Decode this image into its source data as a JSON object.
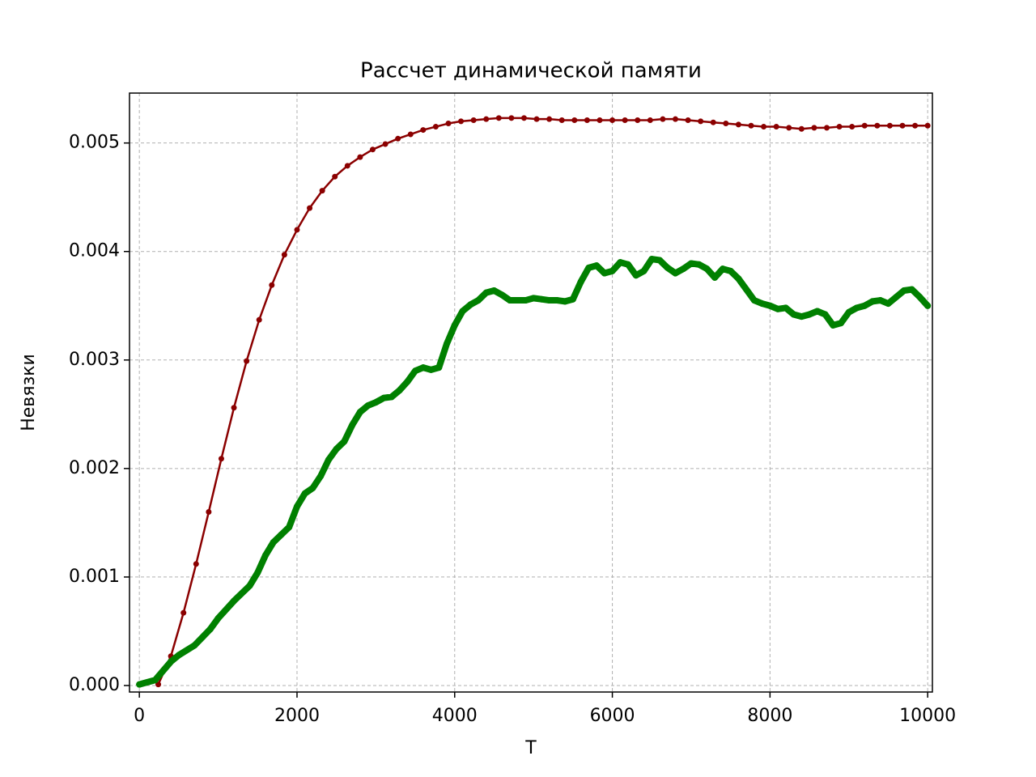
{
  "chart_data": {
    "type": "line",
    "title": "Рассчет динамической памяти",
    "x_label": "T",
    "y_label": "Невязки",
    "xlim": [
      -125,
      10060
    ],
    "ylim": [
      -6e-05,
      0.00546
    ],
    "xticks": [
      0,
      2000,
      4000,
      6000,
      8000,
      10000
    ],
    "yticks": [
      {
        "value": 0,
        "label": "0.000"
      },
      {
        "value": 0.001,
        "label": "0.001"
      },
      {
        "value": 0.002,
        "label": "0.002"
      },
      {
        "value": 0.003,
        "label": "0.003"
      },
      {
        "value": 0.004,
        "label": "0.004"
      },
      {
        "value": 0.005,
        "label": "0.005"
      }
    ],
    "grid": true,
    "series": [
      {
        "color": "#8b0000",
        "line_width": 2.5,
        "marker_radius": 3.5,
        "x": [
          240,
          400,
          560,
          720,
          880,
          1040,
          1200,
          1360,
          1520,
          1680,
          1840,
          2000,
          2160,
          2320,
          2480,
          2640,
          2800,
          2960,
          3120,
          3280,
          3440,
          3600,
          3760,
          3920,
          4080,
          4240,
          4400,
          4560,
          4720,
          4880,
          5040,
          5200,
          5360,
          5520,
          5680,
          5840,
          6000,
          6160,
          6320,
          6480,
          6640,
          6800,
          6960,
          7120,
          7280,
          7440,
          7600,
          7760,
          7920,
          8080,
          8240,
          8400,
          8560,
          8720,
          8880,
          9040,
          9200,
          9360,
          9520,
          9680,
          9840,
          10000
        ],
        "values": [
          1e-05,
          0.00027,
          0.00067,
          0.00112,
          0.0016,
          0.00209,
          0.00256,
          0.00299,
          0.00337,
          0.00369,
          0.00397,
          0.0042,
          0.0044,
          0.00456,
          0.00469,
          0.00479,
          0.00487,
          0.00494,
          0.00499,
          0.00504,
          0.00508,
          0.00512,
          0.00515,
          0.00518,
          0.0052,
          0.00521,
          0.00522,
          0.00523,
          0.00523,
          0.00523,
          0.00522,
          0.00522,
          0.00521,
          0.00521,
          0.00521,
          0.00521,
          0.00521,
          0.00521,
          0.00521,
          0.00521,
          0.00522,
          0.00522,
          0.00521,
          0.0052,
          0.00519,
          0.00518,
          0.00517,
          0.00516,
          0.00515,
          0.00515,
          0.00514,
          0.00513,
          0.00514,
          0.00514,
          0.00515,
          0.00515,
          0.00516,
          0.00516,
          0.00516,
          0.00516,
          0.00516,
          0.00516
        ]
      },
      {
        "color": "#008000",
        "line_width": 8,
        "marker_radius": 4,
        "x": [
          0,
          200,
          400,
          500,
          700,
          900,
          1000,
          1200,
          1400,
          1500,
          1600,
          1700,
          1800,
          1900,
          2000,
          2100,
          2200,
          2300,
          2400,
          2500,
          2600,
          2700,
          2800,
          2900,
          3000,
          3100,
          3200,
          3300,
          3400,
          3500,
          3600,
          3700,
          3800,
          3900,
          4000,
          4100,
          4200,
          4300,
          4400,
          4500,
          4600,
          4700,
          4800,
          4900,
          5000,
          5100,
          5200,
          5300,
          5400,
          5500,
          5600,
          5700,
          5800,
          5900,
          6000,
          6100,
          6200,
          6300,
          6400,
          6500,
          6600,
          6700,
          6800,
          6900,
          7000,
          7100,
          7200,
          7300,
          7400,
          7500,
          7600,
          7700,
          7800,
          7900,
          8000,
          8100,
          8200,
          8300,
          8400,
          8500,
          8600,
          8700,
          8800,
          8900,
          9000,
          9100,
          9200,
          9300,
          9400,
          9500,
          9600,
          9700,
          9800,
          9900,
          10000
        ],
        "values": [
          1e-05,
          5e-05,
          0.00022,
          0.00028,
          0.00037,
          0.00052,
          0.00062,
          0.00078,
          0.00092,
          0.00104,
          0.0012,
          0.00132,
          0.00139,
          0.00146,
          0.00165,
          0.00177,
          0.00182,
          0.00193,
          0.00208,
          0.00218,
          0.00225,
          0.0024,
          0.00252,
          0.00258,
          0.00261,
          0.00265,
          0.00266,
          0.00272,
          0.0028,
          0.0029,
          0.00293,
          0.00291,
          0.00293,
          0.00315,
          0.00332,
          0.00345,
          0.00351,
          0.00355,
          0.00362,
          0.00364,
          0.0036,
          0.00355,
          0.00355,
          0.00355,
          0.00357,
          0.00356,
          0.00355,
          0.00355,
          0.00354,
          0.00356,
          0.00372,
          0.00385,
          0.00387,
          0.0038,
          0.00382,
          0.0039,
          0.00388,
          0.00378,
          0.00382,
          0.00393,
          0.00392,
          0.00385,
          0.0038,
          0.00384,
          0.00389,
          0.00388,
          0.00384,
          0.00376,
          0.00384,
          0.00382,
          0.00375,
          0.00365,
          0.00355,
          0.00352,
          0.0035,
          0.00347,
          0.00348,
          0.00342,
          0.0034,
          0.00342,
          0.00345,
          0.00342,
          0.00332,
          0.00334,
          0.00344,
          0.00348,
          0.0035,
          0.00354,
          0.00355,
          0.00352,
          0.00358,
          0.00364,
          0.00365,
          0.00358,
          0.0035
        ]
      }
    ]
  }
}
